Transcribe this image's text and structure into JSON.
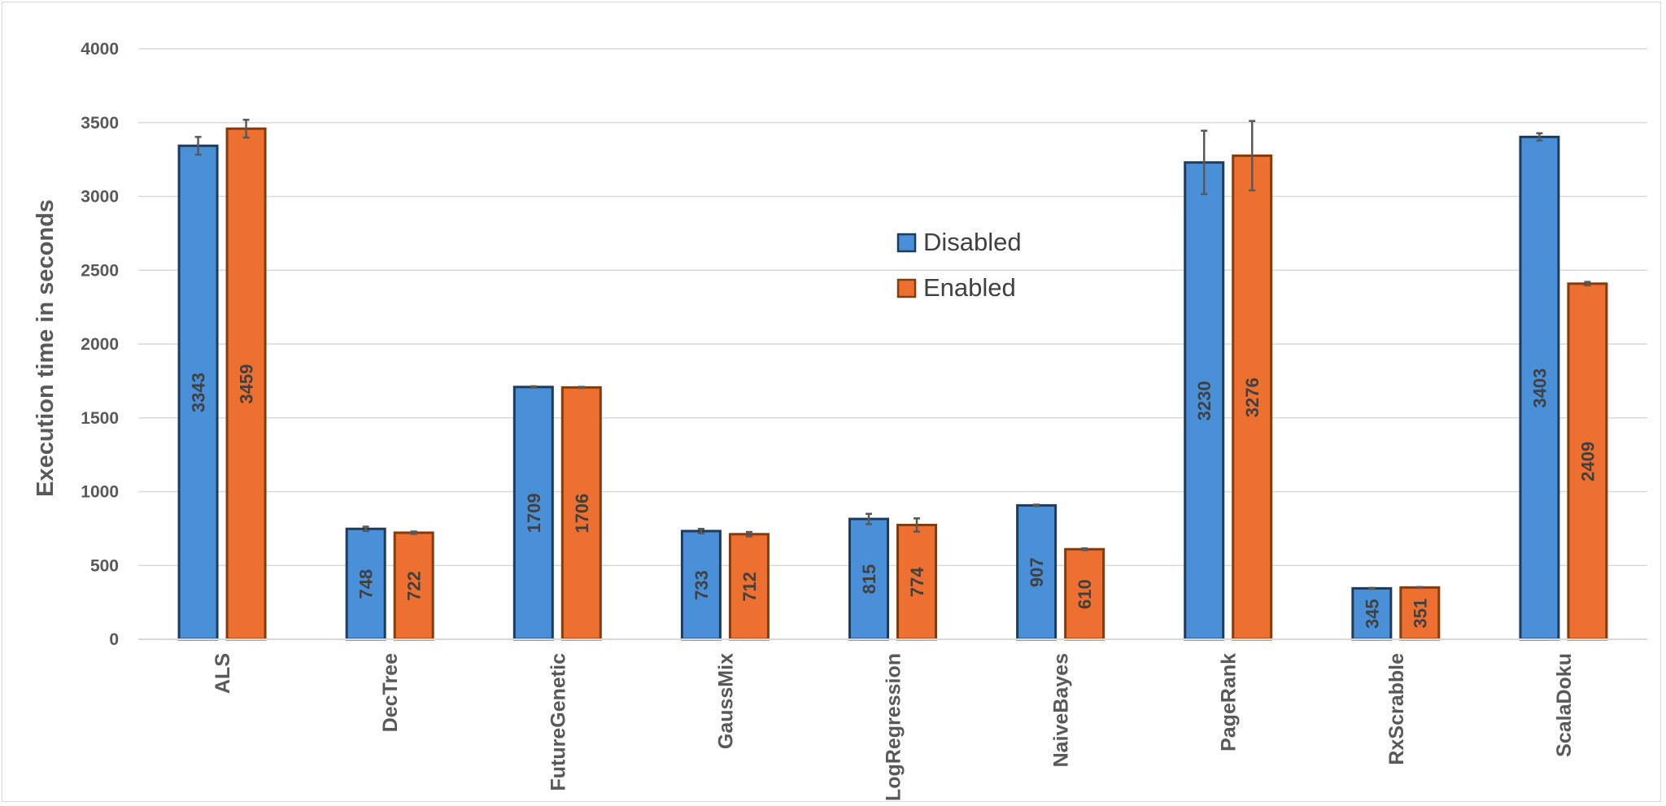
{
  "chart_data": {
    "type": "bar",
    "title": "",
    "xlabel": "",
    "ylabel": "Execution time in seconds",
    "ylim": [
      0,
      4000
    ],
    "yticks": [
      0,
      500,
      1000,
      1500,
      2000,
      2500,
      3000,
      3500,
      4000
    ],
    "grid": true,
    "legend_position": "center-top",
    "categories": [
      "ALS",
      "DecTree",
      "FutureGenetic",
      "GaussMix",
      "LogRegression",
      "NaiveBayes",
      "PageRank",
      "RxScrabble",
      "ScalaDoku"
    ],
    "series": [
      {
        "name": "Disabled",
        "color": "#4a90d9",
        "edge_color": "#1f3b5c",
        "values": [
          3343,
          748,
          1709,
          733,
          815,
          907,
          3230,
          345,
          3403
        ],
        "error": [
          60,
          15,
          5,
          15,
          35,
          5,
          215,
          3,
          25
        ]
      },
      {
        "name": "Enabled",
        "color": "#ed7030",
        "edge_color": "#843c0c",
        "values": [
          3459,
          722,
          1706,
          712,
          774,
          610,
          3276,
          351,
          2409
        ],
        "error": [
          60,
          8,
          4,
          15,
          45,
          6,
          235,
          3,
          12
        ]
      }
    ],
    "error_bar_color": "#595959",
    "gridline_color": "#d9d9d9"
  }
}
